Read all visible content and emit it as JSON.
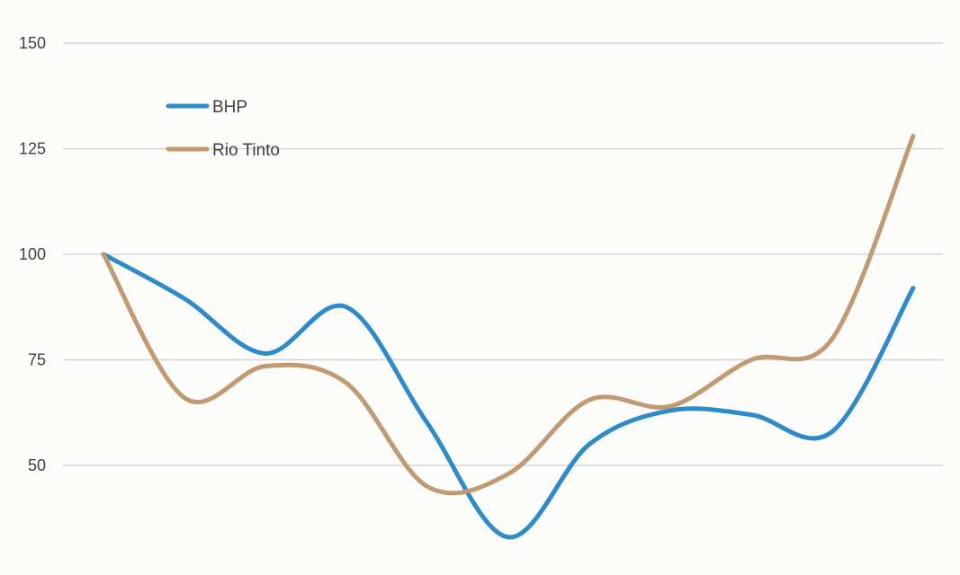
{
  "chart_data": {
    "type": "line",
    "title": "",
    "xlabel": "",
    "ylabel": "",
    "ylim": [
      25,
      150
    ],
    "yticks": [
      150,
      125,
      100,
      75,
      50
    ],
    "grid": true,
    "legend_position": "top-left",
    "x": [
      0,
      1,
      2,
      3,
      4,
      5,
      6,
      7,
      8,
      9,
      10
    ],
    "series": [
      {
        "name": "BHP",
        "color": "#2e8bc9",
        "values": [
          100,
          89.5,
          76.5,
          87.5,
          60,
          33,
          55,
          63,
          62,
          58,
          92
        ]
      },
      {
        "name": "Rio Tinto",
        "color": "#c19a72",
        "values": [
          100,
          66,
          73.5,
          69.5,
          45,
          48,
          65.5,
          64,
          75,
          80,
          128
        ]
      }
    ]
  }
}
